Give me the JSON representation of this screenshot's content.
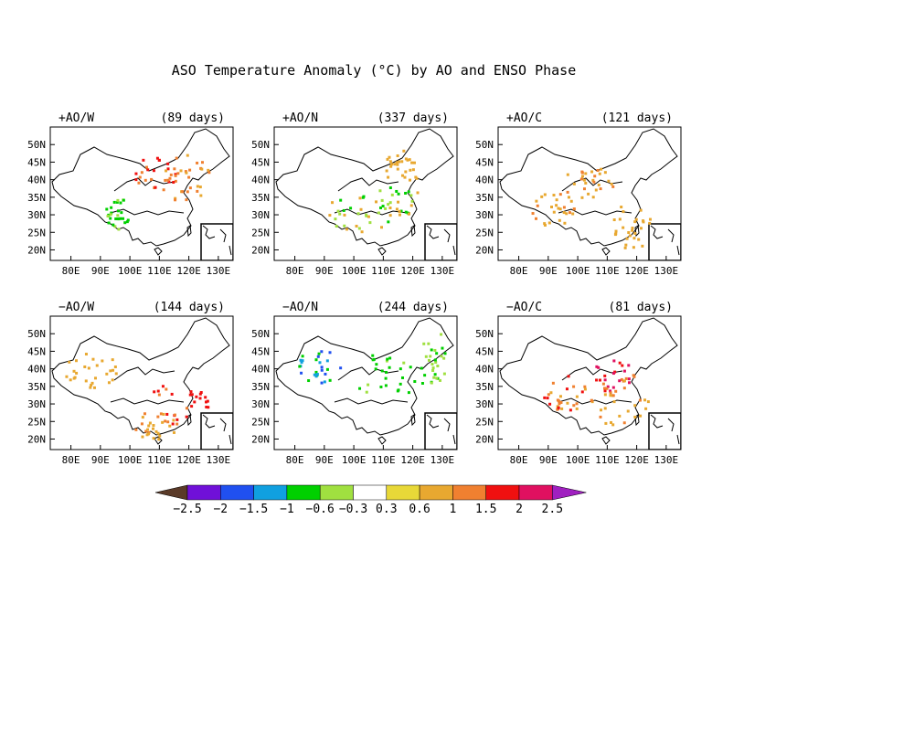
{
  "title": "ASO Temperature Anomaly (°C) by AO and ENSO Phase",
  "x_ticks": [
    "80E",
    "90E",
    "100E",
    "110E",
    "120E",
    "130E"
  ],
  "y_ticks": [
    "50N",
    "45N",
    "40N",
    "35N",
    "30N",
    "25N",
    "20N"
  ],
  "panels": [
    {
      "label": "+AO/W",
      "days": "(89 days)"
    },
    {
      "label": "+AO/N",
      "days": "(337 days)"
    },
    {
      "label": "+AO/C",
      "days": "(121 days)"
    },
    {
      "label": "−AO/W",
      "days": "(144 days)"
    },
    {
      "label": "−AO/N",
      "days": "(244 days)"
    },
    {
      "label": "−AO/C",
      "days": "(81 days)"
    }
  ],
  "colorbar": {
    "colors": [
      "#5a3a28",
      "#7010d8",
      "#2050f0",
      "#10a0e0",
      "#00d000",
      "#a0e040",
      "#ffffff",
      "#e8d838",
      "#e8a830",
      "#f08030",
      "#f01010",
      "#e01060",
      "#a020c0"
    ],
    "labels": [
      "−2.5",
      "−2",
      "−1.5",
      "−1",
      "−0.6",
      "−0.3",
      "0.3",
      "0.6",
      "1",
      "1.5",
      "2",
      "2.5"
    ]
  }
}
